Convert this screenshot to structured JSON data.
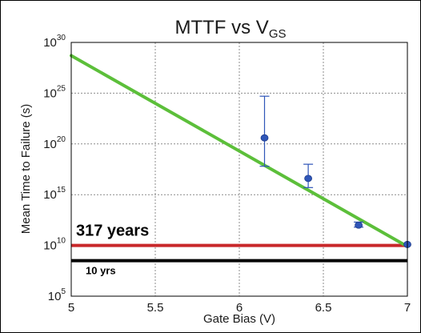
{
  "chart_data": {
    "type": "line",
    "title": "MTTF vs V",
    "title_subscript": "GS",
    "xlabel": "Gate Bias (V)",
    "ylabel": "Mean Time to Failure (s)",
    "xlim": [
      5,
      7
    ],
    "ylim_exponent": [
      5,
      30
    ],
    "y_scale": "log",
    "grid": true,
    "x_ticks": [
      "5",
      "5.5",
      "6",
      "6.5",
      "7"
    ],
    "y_ticks": [
      {
        "base": "10",
        "exp": "5"
      },
      {
        "base": "10",
        "exp": "10"
      },
      {
        "base": "10",
        "exp": "15"
      },
      {
        "base": "10",
        "exp": "20"
      },
      {
        "base": "10",
        "exp": "25"
      },
      {
        "base": "10",
        "exp": "30"
      }
    ],
    "series": [
      {
        "kind": "line",
        "color": "#5cbf3a",
        "x": [
          5.0,
          7.0
        ],
        "log10_y": [
          28.7,
          9.9
        ]
      },
      {
        "kind": "scatter",
        "color": "#2f56b8",
        "points": [
          {
            "x": 6.15,
            "log10_y": 20.6,
            "err_lo": 17.8,
            "err_hi": 24.7
          },
          {
            "x": 6.41,
            "log10_y": 16.6,
            "err_lo": 15.7,
            "err_hi": 18.0
          },
          {
            "x": 6.71,
            "log10_y": 12.0,
            "err_lo": 11.8,
            "err_hi": 12.3
          },
          {
            "x": 7.0,
            "log10_y": 10.1,
            "err_lo": 10.1,
            "err_hi": 10.1
          }
        ]
      }
    ],
    "reference_lines": [
      {
        "label": "317 years",
        "log10_y": 10.0,
        "color": "#c8282a"
      },
      {
        "label": "10 yrs",
        "log10_y": 8.5,
        "color": "#000000"
      }
    ]
  }
}
